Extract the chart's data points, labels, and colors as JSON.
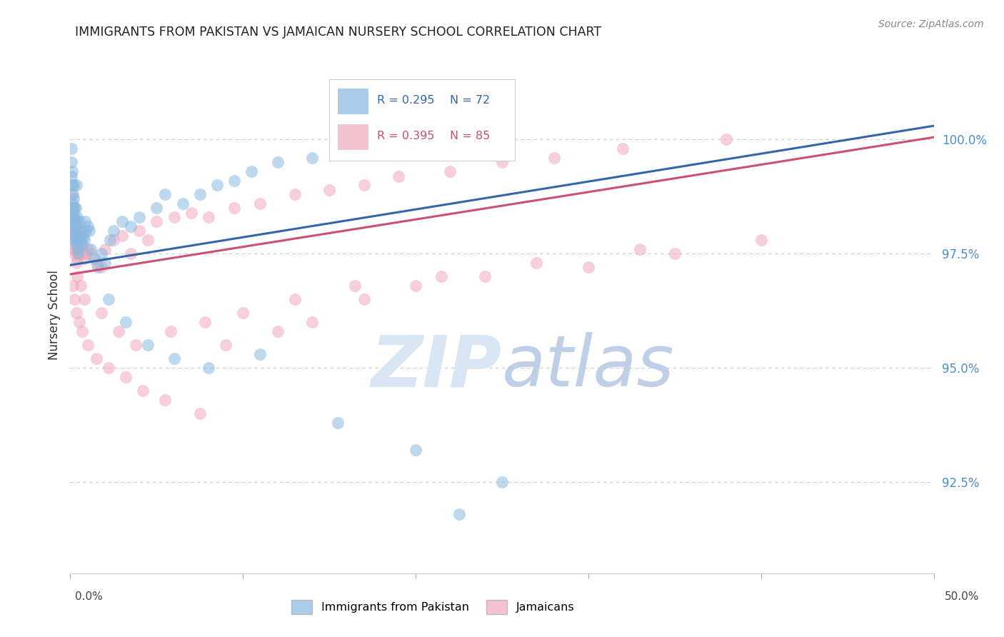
{
  "title": "IMMIGRANTS FROM PAKISTAN VS JAMAICAN NURSERY SCHOOL CORRELATION CHART",
  "source": "Source: ZipAtlas.com",
  "ylabel": "Nursery School",
  "ytick_values": [
    92.5,
    95.0,
    97.5,
    100.0
  ],
  "xlim": [
    0.0,
    50.0
  ],
  "ylim": [
    90.5,
    101.8
  ],
  "blue_R": 0.295,
  "blue_N": 72,
  "pink_R": 0.395,
  "pink_N": 85,
  "blue_color": "#89b8e0",
  "pink_color": "#f0a8bc",
  "blue_line_color": "#3565a8",
  "pink_line_color": "#cc5070",
  "watermark_color": "#d8e5f5",
  "blue_line_x0": 0.0,
  "blue_line_y0": 97.25,
  "blue_line_x1": 50.0,
  "blue_line_y1": 100.3,
  "pink_line_x0": 0.0,
  "pink_line_y0": 97.05,
  "pink_line_x1": 50.0,
  "pink_line_y1": 100.05,
  "blue_scatter_x": [
    0.05,
    0.05,
    0.08,
    0.1,
    0.1,
    0.12,
    0.12,
    0.15,
    0.15,
    0.18,
    0.18,
    0.2,
    0.2,
    0.22,
    0.22,
    0.25,
    0.25,
    0.28,
    0.28,
    0.3,
    0.3,
    0.32,
    0.35,
    0.35,
    0.38,
    0.4,
    0.4,
    0.42,
    0.45,
    0.5,
    0.5,
    0.55,
    0.6,
    0.65,
    0.7,
    0.75,
    0.8,
    0.85,
    0.9,
    1.0,
    1.1,
    1.2,
    1.4,
    1.6,
    1.8,
    2.0,
    2.3,
    2.5,
    3.0,
    3.5,
    4.0,
    5.0,
    5.5,
    6.5,
    7.5,
    8.5,
    9.5,
    10.5,
    12.0,
    14.0,
    16.0,
    18.5,
    2.2,
    3.2,
    4.5,
    6.0,
    8.0,
    11.0,
    15.5,
    20.0,
    22.5,
    25.0
  ],
  "blue_scatter_y": [
    99.5,
    99.2,
    99.8,
    98.6,
    99.0,
    98.4,
    99.3,
    98.2,
    98.8,
    98.5,
    99.0,
    98.3,
    98.7,
    98.0,
    98.5,
    97.9,
    98.3,
    97.8,
    98.1,
    97.7,
    98.0,
    98.5,
    98.2,
    99.0,
    98.0,
    97.8,
    98.3,
    97.6,
    97.5,
    97.9,
    98.2,
    97.8,
    98.0,
    97.9,
    97.7,
    97.9,
    97.8,
    98.2,
    98.0,
    98.1,
    98.0,
    97.6,
    97.4,
    97.2,
    97.5,
    97.3,
    97.8,
    98.0,
    98.2,
    98.1,
    98.3,
    98.5,
    98.8,
    98.6,
    98.8,
    99.0,
    99.1,
    99.3,
    99.5,
    99.6,
    99.7,
    99.8,
    96.5,
    96.0,
    95.5,
    95.2,
    95.0,
    95.3,
    93.8,
    93.2,
    91.8,
    92.5
  ],
  "pink_scatter_x": [
    0.05,
    0.08,
    0.1,
    0.12,
    0.15,
    0.18,
    0.2,
    0.22,
    0.25,
    0.28,
    0.3,
    0.32,
    0.35,
    0.38,
    0.4,
    0.42,
    0.45,
    0.5,
    0.55,
    0.6,
    0.65,
    0.7,
    0.75,
    0.8,
    0.9,
    1.0,
    1.2,
    1.5,
    1.8,
    2.0,
    2.5,
    3.0,
    3.5,
    4.0,
    4.5,
    5.0,
    6.0,
    7.0,
    8.0,
    9.5,
    11.0,
    13.0,
    15.0,
    17.0,
    19.0,
    22.0,
    25.0,
    28.0,
    32.0,
    38.0,
    0.15,
    0.25,
    0.35,
    0.5,
    0.7,
    1.0,
    1.5,
    2.2,
    3.2,
    4.2,
    5.5,
    7.5,
    9.0,
    12.0,
    14.0,
    17.0,
    20.0,
    24.0,
    30.0,
    35.0,
    40.0,
    0.4,
    0.6,
    0.8,
    1.8,
    2.8,
    3.8,
    5.8,
    7.8,
    10.0,
    13.0,
    16.5,
    21.5,
    27.0,
    33.0
  ],
  "pink_scatter_y": [
    98.5,
    98.2,
    98.8,
    97.9,
    97.6,
    98.3,
    97.8,
    98.0,
    97.5,
    98.2,
    97.9,
    97.6,
    97.3,
    97.7,
    97.4,
    98.0,
    97.6,
    97.8,
    97.5,
    97.9,
    97.6,
    97.7,
    97.5,
    97.4,
    97.5,
    97.6,
    97.5,
    97.3,
    97.2,
    97.6,
    97.8,
    97.9,
    97.5,
    98.0,
    97.8,
    98.2,
    98.3,
    98.4,
    98.3,
    98.5,
    98.6,
    98.8,
    98.9,
    99.0,
    99.2,
    99.3,
    99.5,
    99.6,
    99.8,
    100.0,
    96.8,
    96.5,
    96.2,
    96.0,
    95.8,
    95.5,
    95.2,
    95.0,
    94.8,
    94.5,
    94.3,
    94.0,
    95.5,
    95.8,
    96.0,
    96.5,
    96.8,
    97.0,
    97.2,
    97.5,
    97.8,
    97.0,
    96.8,
    96.5,
    96.2,
    95.8,
    95.5,
    95.8,
    96.0,
    96.2,
    96.5,
    96.8,
    97.0,
    97.3,
    97.6
  ]
}
